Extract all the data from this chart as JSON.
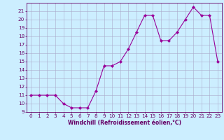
{
  "x": [
    0,
    1,
    2,
    3,
    4,
    5,
    6,
    7,
    8,
    9,
    10,
    11,
    12,
    13,
    14,
    15,
    16,
    17,
    18,
    19,
    20,
    21,
    22,
    23
  ],
  "y": [
    11,
    11,
    11,
    11,
    10,
    9.5,
    9.5,
    9.5,
    11.5,
    14.5,
    14.5,
    15,
    16.5,
    18.5,
    20.5,
    20.5,
    17.5,
    17.5,
    18.5,
    20,
    21.5,
    20.5,
    20.5,
    15
  ],
  "xlabel": "Windchill (Refroidissement éolien,°C)",
  "xlim": [
    -0.5,
    23.5
  ],
  "ylim": [
    9,
    22
  ],
  "yticks": [
    9,
    10,
    11,
    12,
    13,
    14,
    15,
    16,
    17,
    18,
    19,
    20,
    21
  ],
  "xticks": [
    0,
    1,
    2,
    3,
    4,
    5,
    6,
    7,
    8,
    9,
    10,
    11,
    12,
    13,
    14,
    15,
    16,
    17,
    18,
    19,
    20,
    21,
    22,
    23
  ],
  "line_color": "#990099",
  "marker": "D",
  "marker_size": 2.2,
  "bg_color": "#cceeff",
  "grid_color": "#aaaacc",
  "axes_color": "#660066",
  "tick_color": "#660066",
  "label_fontsize": 5.5,
  "tick_fontsize": 5.2
}
